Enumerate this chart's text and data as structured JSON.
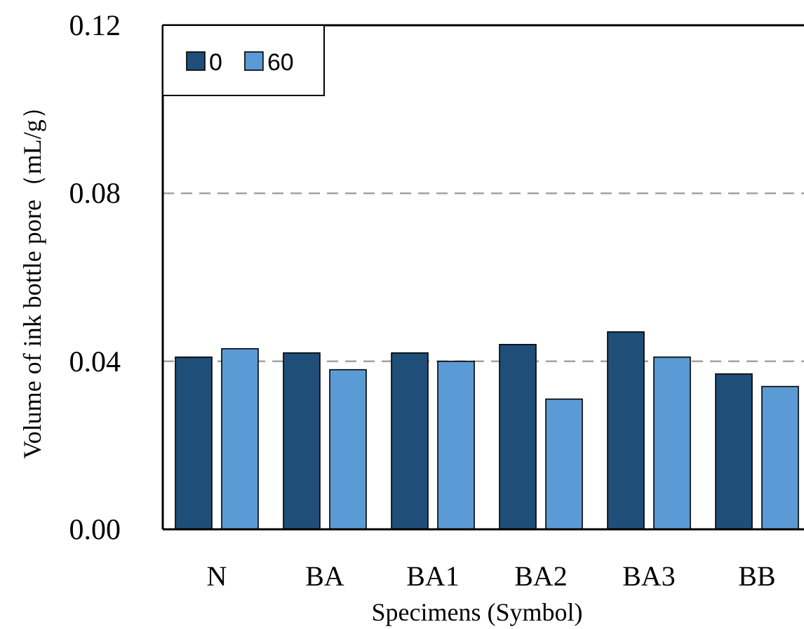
{
  "chart_data": {
    "type": "bar",
    "xlabel": "Specimens (Symbol)",
    "ylabel": "Volume of ink bottle pore（mL/g）",
    "categories": [
      "N",
      "BA",
      "BA1",
      "BA2",
      "BA3",
      "BB"
    ],
    "series": [
      {
        "name": "0",
        "color": "#1f4e79",
        "values": [
          0.041,
          0.042,
          0.042,
          0.044,
          0.047,
          0.037
        ]
      },
      {
        "name": "60",
        "color": "#5b9bd5",
        "values": [
          0.043,
          0.038,
          0.04,
          0.031,
          0.041,
          0.034
        ]
      }
    ],
    "ylim": [
      0,
      0.12
    ],
    "yticks": [
      {
        "value": 0,
        "label": "0.00"
      },
      {
        "value": 0.04,
        "label": "0.04"
      },
      {
        "value": 0.08,
        "label": "0.08"
      },
      {
        "value": 0.12,
        "label": "0.12"
      }
    ],
    "grid": "y",
    "legend": "top left"
  }
}
